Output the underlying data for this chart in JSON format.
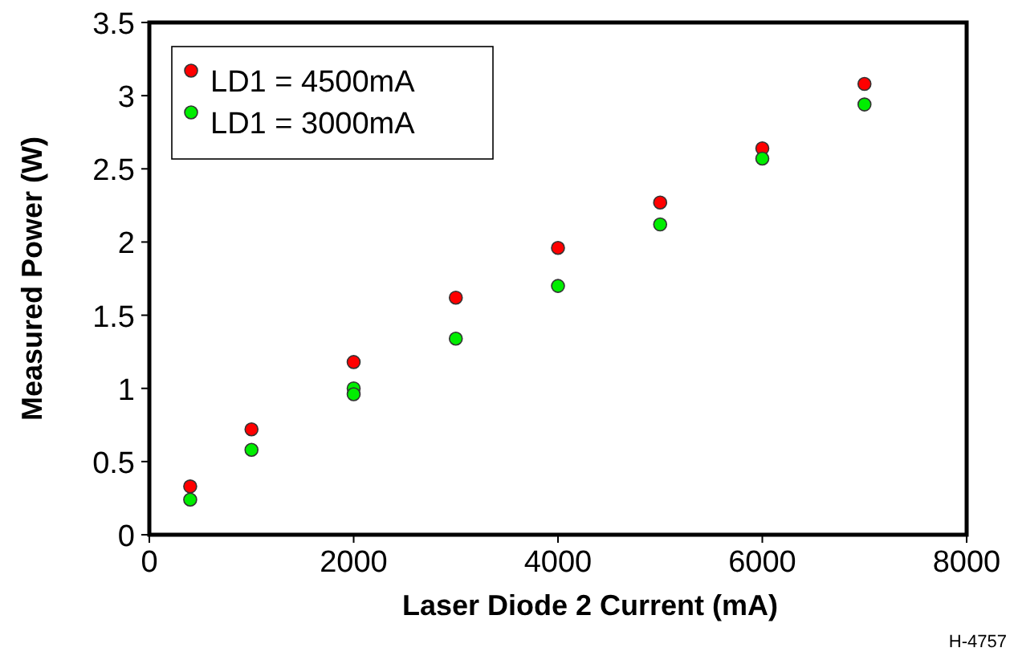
{
  "chart_data": {
    "type": "scatter",
    "xlabel": "Laser Diode 2 Current (mA)",
    "ylabel": "Measured Power (W)",
    "xlim": [
      0,
      8000
    ],
    "xticks": [
      0,
      2000,
      4000,
      6000,
      8000
    ],
    "ylim": [
      0,
      3.5
    ],
    "yticks": [
      0,
      0.5,
      1,
      1.5,
      2,
      2.5,
      3,
      3.5
    ],
    "series": [
      {
        "name": "LD1 = 4500mA",
        "color": "#ff0000",
        "x": [
          400,
          1000,
          2000,
          3000,
          4000,
          5000,
          6000,
          7000
        ],
        "values": [
          0.33,
          0.72,
          1.18,
          1.62,
          1.96,
          2.27,
          2.64,
          3.08
        ]
      },
      {
        "name": "LD1 = 3000mA",
        "color": "#00ee00",
        "x": [
          400,
          1000,
          2000,
          2000,
          3000,
          4000,
          5000,
          6000,
          7000
        ],
        "values": [
          0.24,
          0.58,
          1.0,
          0.96,
          1.34,
          1.7,
          2.12,
          2.57,
          2.94
        ]
      }
    ],
    "marker": "circle",
    "legend": "top left",
    "grid": false,
    "annotations": [
      "H-4757"
    ]
  }
}
